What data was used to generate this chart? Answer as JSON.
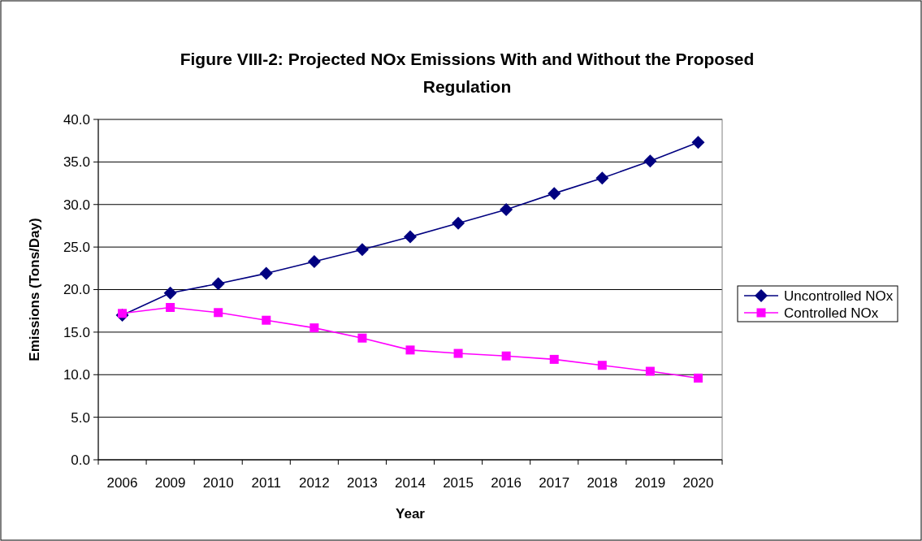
{
  "chart_data": {
    "type": "line",
    "title": "Figure VIII-2:  Projected NOx Emissions With and Without the Proposed Regulation",
    "xlabel": "Year",
    "ylabel": "Emissions (Tons/Day)",
    "categories": [
      "2006",
      "2009",
      "2010",
      "2011",
      "2012",
      "2013",
      "2014",
      "2015",
      "2016",
      "2017",
      "2018",
      "2019",
      "2020"
    ],
    "series": [
      {
        "name": "Uncontrolled NOx",
        "color": "#000080",
        "marker": "diamond",
        "values": [
          17.0,
          19.6,
          20.7,
          21.9,
          23.3,
          24.7,
          26.2,
          27.8,
          29.4,
          31.3,
          33.1,
          35.1,
          37.3
        ]
      },
      {
        "name": "Controlled NOx",
        "color": "#ff00ff",
        "marker": "square",
        "values": [
          17.2,
          17.9,
          17.3,
          16.4,
          15.5,
          14.3,
          12.9,
          12.5,
          12.2,
          11.8,
          11.1,
          10.4,
          9.6
        ]
      }
    ],
    "ylim": [
      0,
      40
    ],
    "yticks": [
      {
        "value": 0,
        "label": "0.0"
      },
      {
        "value": 5,
        "label": "5.0"
      },
      {
        "value": 10,
        "label": "10.0"
      },
      {
        "value": 15,
        "label": "15.0"
      },
      {
        "value": 20,
        "label": "20.0"
      },
      {
        "value": 25,
        "label": "25.0"
      },
      {
        "value": 30,
        "label": "30.0"
      },
      {
        "value": 35,
        "label": "35.0"
      },
      {
        "value": 40,
        "label": "40.0"
      }
    ],
    "grid": "y",
    "legend": "right"
  }
}
